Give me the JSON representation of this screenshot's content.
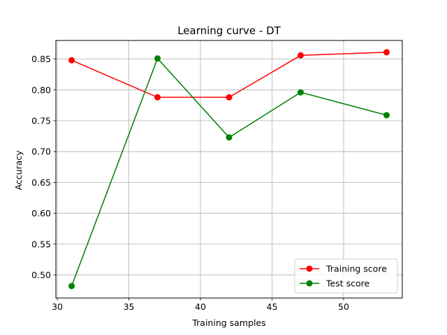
{
  "chart_data": {
    "type": "line",
    "title": "Learning curve - DT",
    "xlabel": "Training samples",
    "ylabel": "Accuracy",
    "x": [
      31,
      37,
      42,
      47,
      53
    ],
    "xlim": [
      29.9,
      54.1
    ],
    "ylim": [
      0.4626,
      0.8801
    ],
    "xticks": [
      30,
      35,
      40,
      45,
      50
    ],
    "yticks": [
      0.5,
      0.55,
      0.6,
      0.65,
      0.7,
      0.75,
      0.8,
      0.85
    ],
    "grid": true,
    "legend_position": "lower-right",
    "series": [
      {
        "name": "Training score",
        "color": "#ff0000",
        "marker": "circle",
        "values": [
          0.848,
          0.788,
          0.788,
          0.856,
          0.861
        ]
      },
      {
        "name": "Test score",
        "color": "#008000",
        "marker": "circle",
        "values": [
          0.482,
          0.851,
          0.723,
          0.796,
          0.759
        ]
      }
    ]
  }
}
